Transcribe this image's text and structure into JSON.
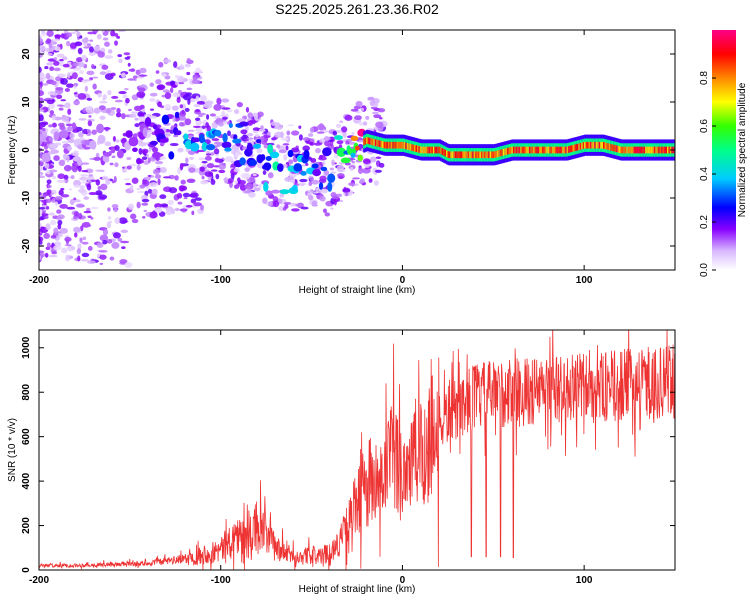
{
  "title": "S225.2025.261.23.36.R02",
  "chart_data": [
    {
      "type": "heatmap",
      "name": "spectrogram",
      "xlabel": "Height of straight line (km)",
      "ylabel": "Frequency (Hz)",
      "xlim": [
        -200,
        150
      ],
      "ylim": [
        -25,
        25
      ],
      "xticks": [
        -200,
        -100,
        0,
        100
      ],
      "yticks": [
        -20,
        -10,
        0,
        10,
        20
      ],
      "colorbar": {
        "label": "Normalized spectral amplitude",
        "range": [
          0,
          1
        ],
        "ticks": [
          0.0,
          0.2,
          0.4,
          0.6,
          0.8
        ]
      },
      "ridge": {
        "x": [
          -200,
          -180,
          -160,
          -140,
          -130,
          -120,
          -110,
          -100,
          -90,
          -80,
          -70,
          -60,
          -50,
          -40,
          -35,
          -30,
          -25,
          -20,
          -10,
          0,
          10,
          20,
          25,
          30,
          40,
          50,
          60,
          70,
          80,
          90,
          100,
          110,
          120,
          130,
          140,
          150
        ],
        "freq": [
          2,
          2,
          1,
          1,
          3,
          3,
          2,
          2,
          1,
          -1,
          -3,
          -4,
          -3,
          -5,
          -2,
          -1,
          1,
          2,
          1,
          1,
          0,
          0,
          -1,
          -1,
          -1,
          -1,
          0,
          0,
          0,
          0,
          1,
          1,
          0,
          0,
          0,
          0
        ],
        "amplitude": [
          0.1,
          0.1,
          0.12,
          0.15,
          0.2,
          0.3,
          0.3,
          0.3,
          0.3,
          0.3,
          0.35,
          0.3,
          0.3,
          0.3,
          0.4,
          0.5,
          0.6,
          0.9,
          0.9,
          0.9,
          0.9,
          0.9,
          0.9,
          0.9,
          0.9,
          0.9,
          0.9,
          0.9,
          0.9,
          0.9,
          0.9,
          0.9,
          0.9,
          0.9,
          0.9,
          0.9
        ]
      }
    },
    {
      "type": "line",
      "name": "snr",
      "xlabel": "Height of straight line (km)",
      "ylabel": "SNR (10 * v/v)",
      "xlim": [
        -200,
        150
      ],
      "ylim": [
        0,
        1080
      ],
      "xticks": [
        -200,
        -100,
        0,
        100
      ],
      "yticks": [
        0,
        200,
        400,
        600,
        800,
        1000
      ],
      "color": "#ee3333",
      "series": [
        {
          "name": "SNR",
          "x": [
            -200,
            -180,
            -160,
            -140,
            -120,
            -110,
            -100,
            -95,
            -90,
            -85,
            -80,
            -75,
            -70,
            -65,
            -60,
            -55,
            -50,
            -45,
            -40,
            -35,
            -30,
            -25,
            -20,
            -18,
            -15,
            -10,
            -5,
            0,
            5,
            10,
            15,
            20,
            25,
            30,
            35,
            40,
            50,
            60,
            70,
            80,
            90,
            100,
            110,
            120,
            130,
            140,
            150
          ],
          "values": [
            20,
            20,
            25,
            30,
            50,
            70,
            90,
            130,
            160,
            130,
            200,
            160,
            100,
            80,
            60,
            60,
            70,
            60,
            80,
            120,
            200,
            300,
            380,
            420,
            320,
            430,
            510,
            450,
            500,
            520,
            600,
            650,
            700,
            720,
            760,
            780,
            790,
            800,
            800,
            810,
            810,
            820,
            820,
            830,
            840,
            840,
            850
          ],
          "dropouts": [
            {
              "x": 38,
              "value": 60
            },
            {
              "x": 46,
              "value": 60
            },
            {
              "x": 54,
              "value": 60
            },
            {
              "x": 61,
              "value": 55
            }
          ]
        }
      ]
    }
  ]
}
